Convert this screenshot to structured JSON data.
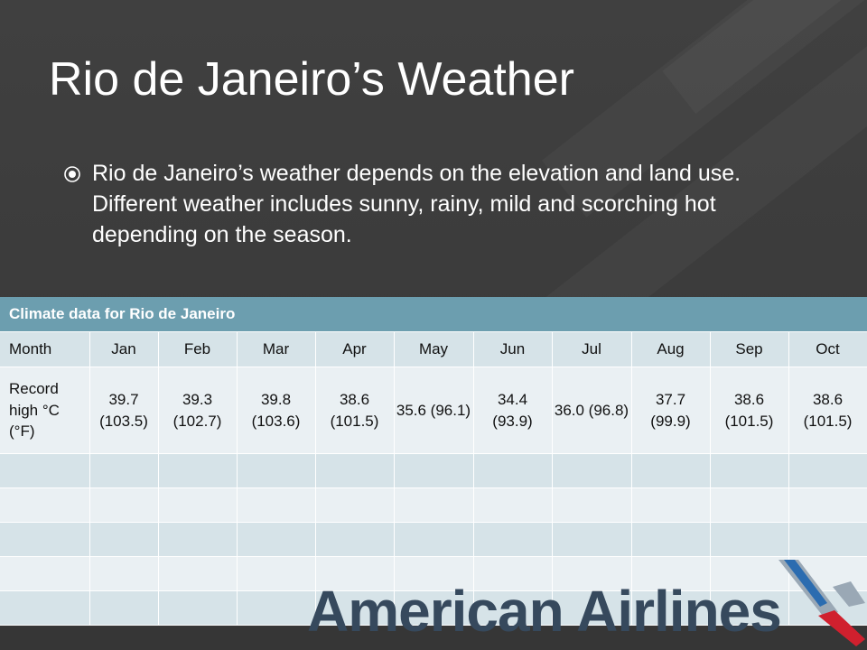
{
  "slide": {
    "title": "Rio de Janeiro’s Weather",
    "bullet": "Rio de Janeiro’s weather depends on the elevation and land use. Different weather includes sunny, rainy, mild and scorching hot depending on the season."
  },
  "table": {
    "caption": "Climate data for Rio de Janeiro",
    "header": [
      "Month",
      "Jan",
      "Feb",
      "Mar",
      "Apr",
      "May",
      "Jun",
      "Jul",
      "Aug",
      "Sep",
      "Oct"
    ],
    "row_label": "Record high °C (°F)",
    "row_values": [
      "39.7 (103.5)",
      "39.3 (102.7)",
      "39.8 (103.6)",
      "38.6 (101.5)",
      "35.6 (96.1)",
      "34.4 (93.9)",
      "36.0 (96.8)",
      "37.7 (99.9)",
      "38.6 (101.5)",
      "38.6 (101.5)"
    ]
  },
  "logo": {
    "text": "American Airlines",
    "colors": {
      "text": "#36495d",
      "blue": "#2b6cb0",
      "red": "#d0202e",
      "gray": "#9aa8b5"
    }
  },
  "colors": {
    "table_header": "#6c9eaf",
    "row_dark": "#d6e3e8",
    "row_light": "#eaf0f3",
    "background": "#3b3b3b"
  }
}
